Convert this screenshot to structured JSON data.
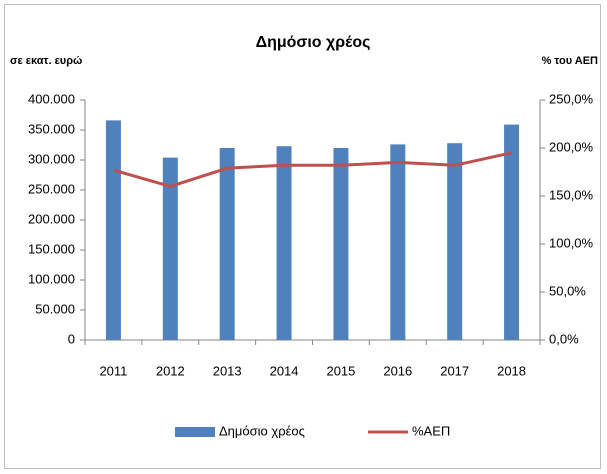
{
  "chart_data": {
    "type": "bar",
    "title": "Δημόσιο χρέος",
    "y_label": "σε εκατ. ευρώ",
    "y2_label": "% του ΑΕΠ",
    "categories": [
      "2011",
      "2012",
      "2013",
      "2014",
      "2015",
      "2016",
      "2017",
      "2018"
    ],
    "series": [
      {
        "name": "Δημόσιο χρέος",
        "type": "bar",
        "color": "#4f81bd",
        "values": [
          366000,
          304000,
          320000,
          323000,
          320000,
          326000,
          328000,
          359000
        ]
      },
      {
        "name": "%ΑΕΠ",
        "type": "line",
        "axis": "y2",
        "color": "#c0504d",
        "values": [
          177,
          160,
          179,
          182,
          182,
          185,
          182,
          195
        ]
      }
    ],
    "ylim": [
      0,
      400000
    ],
    "yticks": [
      0,
      {
        "value": 50000,
        "label": "50.000"
      },
      {
        "value": 100000,
        "label": "100.000"
      },
      {
        "value": 150000,
        "label": "150.000"
      },
      {
        "value": 200000,
        "label": "200.000"
      },
      {
        "value": 250000,
        "label": "250.000"
      },
      {
        "value": 300000,
        "label": "300.000"
      },
      {
        "value": 350000,
        "label": "350.000"
      },
      {
        "value": 400000,
        "label": "400.000"
      }
    ],
    "y2lim": [
      0,
      250
    ],
    "y2ticks": [
      {
        "value": 0,
        "label": "0,0%"
      },
      {
        "value": 50,
        "label": "50,0%"
      },
      {
        "value": 100,
        "label": "100,0%"
      },
      {
        "value": 150,
        "label": "150,0%"
      },
      {
        "value": 200,
        "label": "200,0%"
      },
      {
        "value": 250,
        "label": "250,0%"
      }
    ],
    "grid": false,
    "legend": "bottom"
  }
}
